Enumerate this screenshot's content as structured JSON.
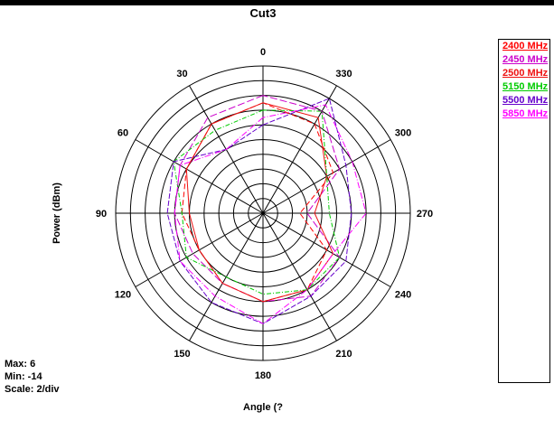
{
  "chart_data": {
    "type": "polar",
    "title": "Cut3",
    "xlabel": "Angle (?",
    "ylabel": "Power  (dBm)",
    "angle_ticks": [
      0,
      30,
      60,
      90,
      120,
      150,
      180,
      210,
      240,
      270,
      300,
      330
    ],
    "rlim": [
      -14,
      6
    ],
    "stats": {
      "max": "Max: 6",
      "min": "Min: -14",
      "scale": "Scale: 2/div"
    },
    "series": [
      {
        "name": "2400 MHz",
        "color": "#ff0000",
        "dash": "6,3",
        "theta": [
          0,
          30,
          60,
          90,
          120,
          150,
          180,
          210,
          240,
          270,
          300,
          330
        ],
        "values": [
          1,
          0,
          -2,
          -3,
          -4,
          -3,
          -2,
          -2,
          -4,
          -9,
          -3,
          0
        ]
      },
      {
        "name": "2450 MHz",
        "color": "#cc00cc",
        "dash": "8,3",
        "theta": [
          0,
          30,
          60,
          90,
          120,
          150,
          180,
          210,
          240,
          270,
          300,
          330
        ],
        "values": [
          2,
          1,
          -1,
          -2,
          -3,
          -3,
          -2,
          -1,
          -2,
          -8,
          -2,
          2
        ]
      },
      {
        "name": "2500 MHz",
        "color": "#ee1111",
        "dash": "",
        "theta": [
          0,
          30,
          60,
          90,
          120,
          150,
          180,
          210,
          240,
          270,
          300,
          330
        ],
        "values": [
          1,
          0,
          -2,
          -4,
          -4,
          -3,
          -2,
          -2,
          -3,
          -7,
          -4,
          1
        ]
      },
      {
        "name": "5150 MHz",
        "color": "#00cc00",
        "dash": "5,2,1,2",
        "theta": [
          0,
          30,
          60,
          90,
          120,
          150,
          180,
          210,
          240,
          270,
          300,
          330
        ],
        "values": [
          0,
          -1,
          0,
          -3,
          -2,
          -4,
          -3,
          -2,
          -2,
          -5,
          -4,
          2
        ]
      },
      {
        "name": "5500 MHz",
        "color": "#6600cc",
        "dash": "6,2",
        "theta": [
          0,
          30,
          60,
          90,
          120,
          150,
          180,
          210,
          240,
          270,
          300,
          330
        ],
        "values": [
          -2,
          -4,
          0,
          -1,
          -1,
          0,
          1,
          -1,
          -1,
          -2,
          -1,
          4
        ]
      },
      {
        "name": "5850 MHz",
        "color": "#ff00ff",
        "dash": "7,2,1,2",
        "theta": [
          0,
          30,
          60,
          90,
          120,
          150,
          180,
          210,
          240,
          270,
          300,
          330
        ],
        "values": [
          -1,
          -4,
          -1,
          -2,
          -1,
          -1,
          1,
          -2,
          -3,
          0,
          0,
          3
        ]
      }
    ]
  }
}
